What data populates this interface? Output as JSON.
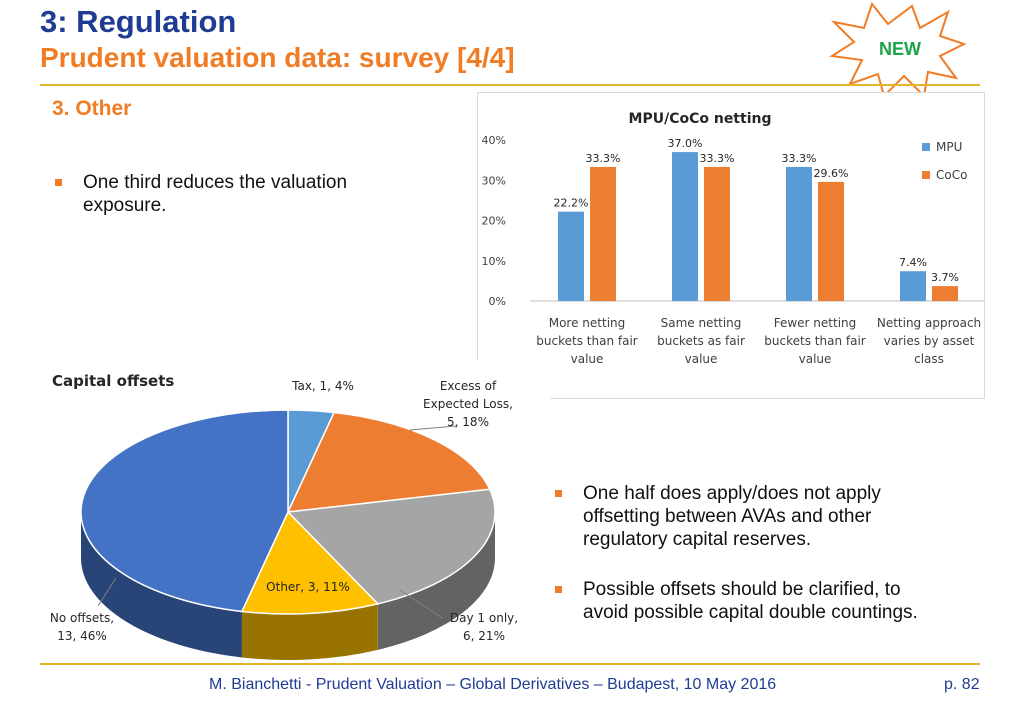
{
  "header": {
    "title": "3: Regulation",
    "subtitle": "Prudent valuation data: survey [4/4]",
    "badge": "NEW"
  },
  "section": {
    "heading": "3.  Other"
  },
  "bullets": [
    {
      "lines": [
        "One third reduces the valuation",
        "exposure."
      ]
    },
    {
      "lines": [
        "One half does apply/does not apply",
        "offsetting between AVAs and other",
        "regulatory capital reserves."
      ]
    },
    {
      "lines": [
        "Possible offsets should be clarified, to",
        "avoid possible capital double countings."
      ]
    }
  ],
  "footer": {
    "text": "M. Bianchetti - Prudent Valuation – Global Derivatives – Budapest, 10 May 2016",
    "page": "p. 82"
  },
  "colors": {
    "title_blue": "#1f3c93",
    "accent_orange": "#f07c26",
    "rule_gold": "#e2b62b",
    "mpu": "#5b9bd5",
    "coco": "#ed7d31"
  },
  "chart_data": [
    {
      "type": "bar",
      "title": "MPU/CoCo netting",
      "categories": [
        [
          "More netting",
          "buckets than fair",
          "value"
        ],
        [
          "Same netting",
          "buckets as fair",
          "value"
        ],
        [
          "Fewer netting",
          "buckets than fair",
          "value"
        ],
        [
          "Netting approach",
          "varies by asset",
          "class"
        ]
      ],
      "series": [
        {
          "name": "MPU",
          "values": [
            22.2,
            37.0,
            33.3,
            7.4
          ],
          "labels": [
            "22.2%",
            "37.0%",
            "33.3%",
            "7.4%"
          ],
          "color": "#5b9bd5"
        },
        {
          "name": "CoCo",
          "values": [
            33.3,
            33.3,
            29.6,
            3.7
          ],
          "labels": [
            "33.3%",
            "33.3%",
            "29.6%",
            "3.7%"
          ],
          "color": "#ed7d31"
        }
      ],
      "yticks": [
        "0%",
        "10%",
        "20%",
        "30%",
        "40%"
      ],
      "ylim": [
        0,
        40
      ],
      "legend": "right",
      "grid": false
    },
    {
      "type": "pie",
      "title": "Capital offsets",
      "slices": [
        {
          "label": "Tax, 1, 4%",
          "value": 1,
          "color": "#5b9bd5"
        },
        {
          "label": "Excess of Expected Loss, 5, 18%",
          "value": 5,
          "color": "#ed7d31"
        },
        {
          "label": "Day 1 only, 6, 21%",
          "value": 6,
          "color": "#a5a5a5"
        },
        {
          "label": "Other, 3, 11%",
          "value": 3,
          "color": "#ffc000"
        },
        {
          "label": "No offsets, 13, 46%",
          "value": 13,
          "color": "#4472c4"
        }
      ],
      "label_lines": [
        [
          "Tax, 1, 4%"
        ],
        [
          "Excess of",
          "Expected Loss,",
          "5, 18%"
        ],
        [
          "Day 1 only,",
          "6, 21%"
        ],
        [
          "Other, 3, 11%"
        ],
        [
          "No offsets,",
          "13, 46%"
        ]
      ],
      "style": "3d"
    }
  ]
}
